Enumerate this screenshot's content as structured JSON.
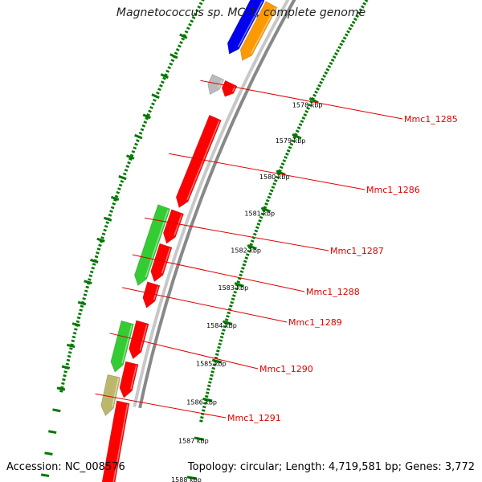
{
  "title": "Magnetococcus sp. MC-1, complete genome",
  "footer": {
    "accession": "Accession: NC_008576",
    "summary": "Topology: circular; Length: 4,719,581 bp; Genes: 3,772"
  },
  "scale_labels": [
    "1578 kbp",
    "1579 kbp",
    "1580 kbp",
    "1581 kbp",
    "1582 kbp",
    "1583 kbp",
    "1584 kbp",
    "1585 kbp",
    "1586 kbp",
    "1587 kbp",
    "1588 kbp"
  ],
  "gene_labels": [
    "Mmc1_1285",
    "Mmc1_1286",
    "Mmc1_1287",
    "Mmc1_1288",
    "Mmc1_1289",
    "Mmc1_1290",
    "Mmc1_1291"
  ],
  "colors": {
    "cds": "#ff0000",
    "rna_green": "#33cc33",
    "blue": "#0000ee",
    "orange": "#ff9900",
    "grey": "#bbbbbb",
    "khaki": "#bdb76b",
    "tick": "#007700",
    "backbone": "#888888",
    "label": "#e00000"
  }
}
